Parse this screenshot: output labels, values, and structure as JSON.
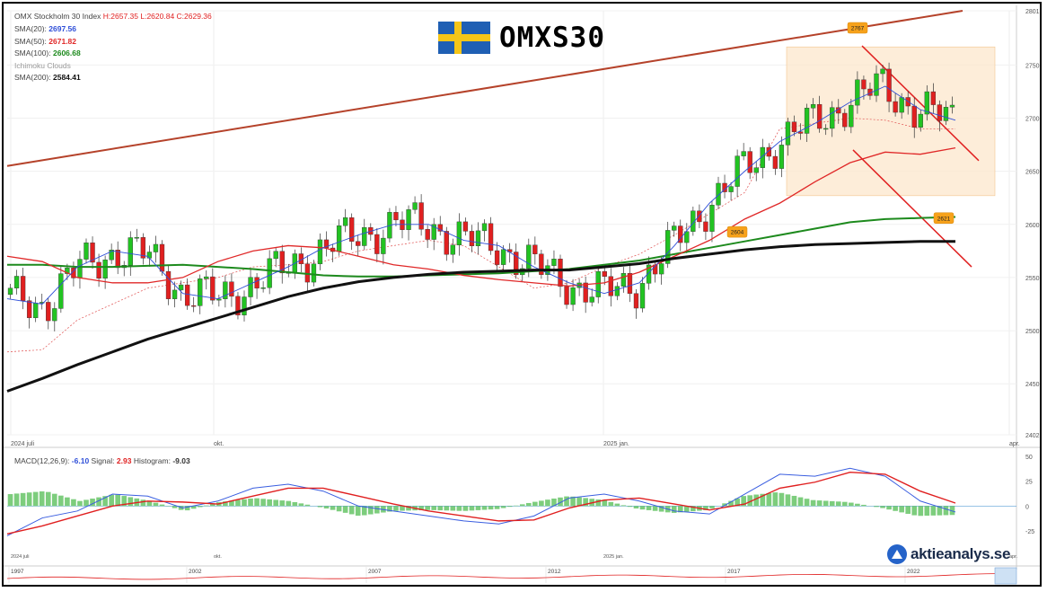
{
  "title": "OMXS30",
  "header": {
    "index_name": "OMX Stockholm 30 Index",
    "ohlc": "H:2657.35 L:2620.84 C:2629.36"
  },
  "indicators": [
    {
      "name": "SMA(20):",
      "value": "2697.56",
      "color": "#2f4fd8"
    },
    {
      "name": "SMA(50):",
      "value": "2671.82",
      "color": "#e02828"
    },
    {
      "name": "SMA(100):",
      "value": "2606.68",
      "color": "#1d8a1d"
    },
    {
      "name": "Ichimoku Clouds",
      "value": "",
      "color": "#999999"
    },
    {
      "name": "SMA(200):",
      "value": "2584.41",
      "color": "#111111"
    }
  ],
  "macd_header": {
    "name": "MACD(12,26,9):",
    "macd": "-6.10",
    "signal_label": "Signal:",
    "signal": "2.93",
    "hist_label": "Histogram:",
    "hist": "-9.03"
  },
  "brand": "aktieanalys.se",
  "colors": {
    "up": "#22c322",
    "down": "#e02020",
    "sma20": "#2f4fd8",
    "sma50": "#e02828",
    "sma100": "#1d8a1d",
    "sma200": "#111111",
    "trend": "#b5422a",
    "box": "#fde9cf"
  },
  "chart_data": {
    "type": "candlestick",
    "y_axis": {
      "ticks": [
        "2801",
        "2750",
        "2700",
        "2650",
        "2600",
        "2550",
        "2500",
        "2450",
        "2402"
      ],
      "ylim": [
        2402,
        2801
      ]
    },
    "x_axis": {
      "ticks": [
        "2024 juli",
        "okt.",
        "2025 jan.",
        "apr."
      ]
    },
    "annotations": [
      "2767",
      "2604",
      "2621"
    ],
    "sma20": [
      2530,
      2525,
      2560,
      2575,
      2570,
      2535,
      2530,
      2545,
      2560,
      2578,
      2590,
      2600,
      2600,
      2585,
      2580,
      2560,
      2545,
      2535,
      2545,
      2580,
      2620,
      2650,
      2678,
      2695,
      2715,
      2730,
      2708,
      2698
    ],
    "sma50": [
      2570,
      2565,
      2550,
      2545,
      2545,
      2550,
      2565,
      2575,
      2580,
      2578,
      2570,
      2562,
      2558,
      2552,
      2548,
      2545,
      2542,
      2545,
      2555,
      2570,
      2585,
      2605,
      2620,
      2640,
      2658,
      2668,
      2666,
      2672
    ],
    "sma100": [
      2562,
      2562,
      2560,
      2560,
      2561,
      2562,
      2560,
      2558,
      2555,
      2552,
      2551,
      2551,
      2552,
      2553,
      2554,
      2556,
      2558,
      2562,
      2566,
      2572,
      2578,
      2584,
      2590,
      2596,
      2602,
      2605,
      2606,
      2607
    ],
    "sma200": [
      2443,
      2455,
      2468,
      2480,
      2492,
      2502,
      2512,
      2522,
      2532,
      2540,
      2546,
      2550,
      2553,
      2555,
      2556,
      2557,
      2557,
      2560,
      2563,
      2568,
      2572,
      2576,
      2579,
      2581,
      2582,
      2583,
      2584,
      2584
    ],
    "macd_axis": {
      "ticks": [
        "50",
        "25",
        "0",
        "-25"
      ]
    },
    "macd_line": [
      -30,
      -12,
      -5,
      12,
      10,
      -2,
      5,
      18,
      22,
      15,
      0,
      -5,
      -10,
      -15,
      -18,
      -10,
      8,
      12,
      5,
      -5,
      -8,
      12,
      32,
      30,
      38,
      30,
      5,
      -6
    ],
    "signal_line": [
      -28,
      -20,
      -10,
      0,
      5,
      4,
      2,
      10,
      18,
      18,
      10,
      2,
      -5,
      -10,
      -15,
      -14,
      -2,
      6,
      8,
      2,
      -4,
      2,
      18,
      24,
      34,
      32,
      15,
      3
    ],
    "histogram": [
      12,
      15,
      5,
      12,
      5,
      -5,
      4,
      8,
      5,
      -2,
      -10,
      -5,
      -4,
      -5,
      -3,
      4,
      10,
      6,
      -3,
      -7,
      -4,
      10,
      14,
      6,
      4,
      -2,
      -10,
      -9
    ],
    "navigator_labels": [
      "1997",
      "2002",
      "2007",
      "2012",
      "2017",
      "2022"
    ]
  }
}
